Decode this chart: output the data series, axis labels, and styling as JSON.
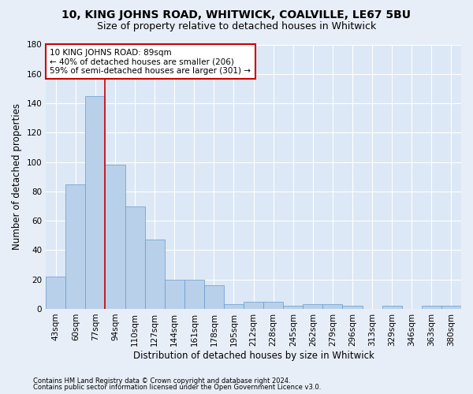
{
  "title1": "10, KING JOHNS ROAD, WHITWICK, COALVILLE, LE67 5BU",
  "title2": "Size of property relative to detached houses in Whitwick",
  "xlabel": "Distribution of detached houses by size in Whitwick",
  "ylabel": "Number of detached properties",
  "categories": [
    "43sqm",
    "60sqm",
    "77sqm",
    "94sqm",
    "110sqm",
    "127sqm",
    "144sqm",
    "161sqm",
    "178sqm",
    "195sqm",
    "212sqm",
    "228sqm",
    "245sqm",
    "262sqm",
    "279sqm",
    "296sqm",
    "313sqm",
    "329sqm",
    "346sqm",
    "363sqm",
    "380sqm"
  ],
  "values": [
    22,
    85,
    145,
    98,
    70,
    47,
    20,
    20,
    16,
    3,
    5,
    5,
    2,
    3,
    3,
    2,
    0,
    2,
    0,
    2,
    2
  ],
  "bar_color": "#b8d0ea",
  "bar_edge_color": "#6699cc",
  "vline_x": 2.5,
  "vline_color": "#cc0000",
  "annotation_text_line1": "10 KING JOHNS ROAD: 89sqm",
  "annotation_text_line2": "← 40% of detached houses are smaller (206)",
  "annotation_text_line3": "59% of semi-detached houses are larger (301) →",
  "footnote1": "Contains HM Land Registry data © Crown copyright and database right 2024.",
  "footnote2": "Contains public sector information licensed under the Open Government Licence v3.0.",
  "ylim": [
    0,
    180
  ],
  "yticks": [
    0,
    20,
    40,
    60,
    80,
    100,
    120,
    140,
    160,
    180
  ],
  "fig_bg_color": "#e8eef8",
  "ax_bg_color": "#dce8f5",
  "grid_color": "#ffffff",
  "title1_fontsize": 10,
  "title2_fontsize": 9,
  "axis_label_fontsize": 8.5,
  "tick_fontsize": 7.5,
  "annotation_fontsize": 7.5,
  "footnote_fontsize": 6
}
